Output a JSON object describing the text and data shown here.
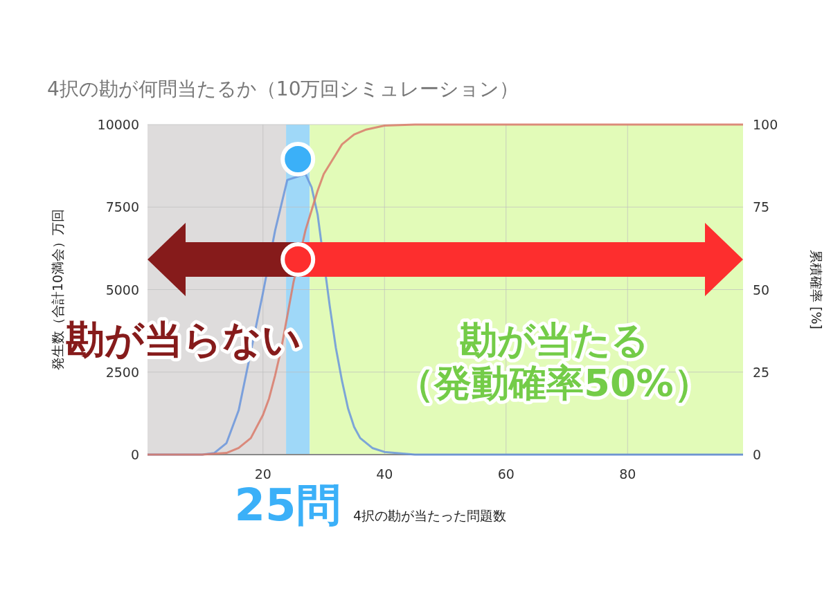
{
  "chart_data": {
    "type": "line",
    "title": "4択の勘が何問当たるか（10万回シミュレーション）",
    "xlabel": "4択の勘が当たった問題数",
    "ylabel": "発生数（合計10満会）万回",
    "y2label": "累積確率 [%]",
    "xlim": [
      1,
      99
    ],
    "xticks": [
      20,
      40,
      60,
      80
    ],
    "ylim": [
      0,
      10000
    ],
    "yticks": [
      0,
      2500,
      5000,
      7500,
      10000
    ],
    "y2lim": [
      0,
      100
    ],
    "y2ticks": [
      0,
      25,
      50,
      75,
      100
    ],
    "grid": true,
    "series": [
      {
        "color": "#6a95dc",
        "x": [
          1,
          10,
          12,
          14,
          16,
          20,
          22,
          24,
          27,
          28,
          29,
          31,
          32,
          33,
          34,
          35,
          36,
          38,
          40,
          45,
          99
        ],
        "values": [
          0,
          0,
          50,
          350,
          1340,
          4900,
          6790,
          8320,
          8500,
          8100,
          7270,
          4490,
          3230,
          2240,
          1400,
          840,
          500,
          200,
          80,
          0,
          0
        ]
      },
      {
        "color": "#d97a6a",
        "axis": "y2",
        "x": [
          1,
          10,
          14,
          16,
          18,
          20,
          21,
          22,
          23,
          24,
          25,
          27,
          28,
          29,
          30,
          31,
          32,
          33,
          35,
          37,
          40,
          45,
          99
        ],
        "values": [
          0,
          0,
          0.5,
          2,
          5,
          12,
          17,
          24,
          32,
          42,
          52,
          68,
          74,
          80,
          85,
          88,
          91,
          94,
          97,
          98.5,
          99.7,
          100,
          100
        ]
      }
    ],
    "bands": [
      {
        "axis": "x",
        "from": 1,
        "to": 23.8,
        "color": "#dedcdc",
        "label": "勘が当らない"
      },
      {
        "axis": "x",
        "from": 23.8,
        "to": 27.7,
        "color": "#9fd8f8",
        "label": "25問"
      },
      {
        "axis": "x",
        "from": 27.7,
        "to": 99,
        "color": "#e2fbb8",
        "label": "勘が当たる（発動確率50%）"
      }
    ]
  }
}
